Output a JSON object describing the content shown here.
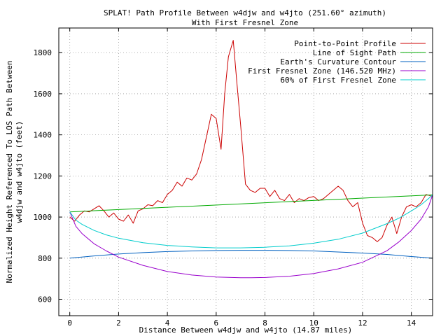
{
  "chart_data": {
    "type": "line",
    "title": "SPLAT! Path Profile Between w4djw and w4jto (251.60° azimuth)",
    "subtitle": "With First Fresnel Zone",
    "xlabel": "Distance Between w4djw and w4jto (14.87 miles)",
    "ylabel_line1": "Normalized Height Referenced To LOS Path Between",
    "ylabel_line2": "w4djw and w4jto (feet)",
    "xlim": [
      -0.45,
      14.87
    ],
    "ylim": [
      520,
      1920
    ],
    "x_ticks": [
      0,
      2,
      4,
      6,
      8,
      10,
      12,
      14
    ],
    "y_ticks": [
      600,
      800,
      1000,
      1200,
      1400,
      1600,
      1800
    ],
    "grid": true,
    "legend_position": "top-right",
    "series": [
      {
        "name": "Point-to-Point Profile",
        "color": "#cc0000",
        "x": [
          0,
          0.2,
          0.4,
          0.6,
          0.8,
          1.0,
          1.2,
          1.4,
          1.6,
          1.8,
          2.0,
          2.2,
          2.4,
          2.6,
          2.8,
          3.0,
          3.2,
          3.4,
          3.6,
          3.8,
          4.0,
          4.2,
          4.4,
          4.6,
          4.8,
          5.0,
          5.2,
          5.4,
          5.6,
          5.8,
          6.0,
          6.2,
          6.35,
          6.5,
          6.7,
          6.85,
          7.0,
          7.2,
          7.4,
          7.6,
          7.8,
          8.0,
          8.2,
          8.4,
          8.6,
          8.8,
          9.0,
          9.2,
          9.4,
          9.6,
          9.8,
          10.0,
          10.2,
          10.4,
          10.6,
          10.8,
          11.0,
          11.2,
          11.4,
          11.6,
          11.8,
          12.0,
          12.2,
          12.4,
          12.6,
          12.8,
          13.0,
          13.2,
          13.4,
          13.6,
          13.8,
          14.0,
          14.2,
          14.4,
          14.6,
          14.87
        ],
        "values": [
          1000,
          980,
          1010,
          1030,
          1025,
          1040,
          1055,
          1030,
          1000,
          1020,
          990,
          980,
          1010,
          970,
          1030,
          1040,
          1060,
          1055,
          1080,
          1070,
          1110,
          1130,
          1170,
          1150,
          1190,
          1180,
          1210,
          1280,
          1390,
          1500,
          1480,
          1330,
          1600,
          1780,
          1860,
          1650,
          1450,
          1160,
          1130,
          1120,
          1140,
          1140,
          1100,
          1130,
          1090,
          1080,
          1110,
          1070,
          1090,
          1080,
          1095,
          1100,
          1080,
          1090,
          1110,
          1130,
          1150,
          1130,
          1080,
          1050,
          1070,
          970,
          910,
          900,
          880,
          900,
          960,
          1000,
          920,
          1000,
          1050,
          1060,
          1050,
          1070,
          1110,
          1100
        ]
      },
      {
        "name": "Line of Sight Path",
        "color": "#00aa00",
        "x": [
          0,
          14.87
        ],
        "values": [
          1025,
          1108
        ]
      },
      {
        "name": "Earth's Curvature Contour",
        "color": "#0060c0",
        "x": [
          0,
          1,
          2,
          3,
          4,
          5,
          6,
          7,
          7.435,
          8,
          9,
          10,
          11,
          12,
          13,
          14,
          14.87
        ],
        "values": [
          800,
          811,
          820,
          827,
          832,
          835,
          837,
          838,
          838,
          838,
          837,
          835,
          830,
          825,
          818,
          808,
          800
        ]
      },
      {
        "name": "First Fresnel Zone (146.520 MHz)",
        "color": "#9900cc",
        "x": [
          0,
          0.25,
          0.5,
          1,
          1.5,
          2,
          3,
          4,
          5,
          6,
          7,
          7.435,
          8,
          9,
          10,
          11,
          12,
          13,
          13.5,
          14,
          14.4,
          14.7,
          14.87
        ],
        "values": [
          1025,
          955,
          920,
          870,
          835,
          805,
          765,
          735,
          718,
          708,
          705,
          705,
          706,
          712,
          725,
          748,
          780,
          836,
          880,
          935,
          990,
          1050,
          1108
        ]
      },
      {
        "name": "60% of First Fresnel Zone",
        "color": "#00cccc",
        "x": [
          0,
          0.25,
          0.5,
          1,
          1.5,
          2,
          3,
          4,
          5,
          6,
          7,
          7.435,
          8,
          9,
          10,
          11,
          12,
          13,
          13.5,
          14,
          14.4,
          14.7,
          14.87
        ],
        "values": [
          1025,
          985,
          965,
          935,
          913,
          897,
          875,
          862,
          855,
          850,
          850,
          851,
          853,
          860,
          873,
          892,
          922,
          968,
          995,
          1030,
          1060,
          1090,
          1108
        ]
      }
    ]
  }
}
